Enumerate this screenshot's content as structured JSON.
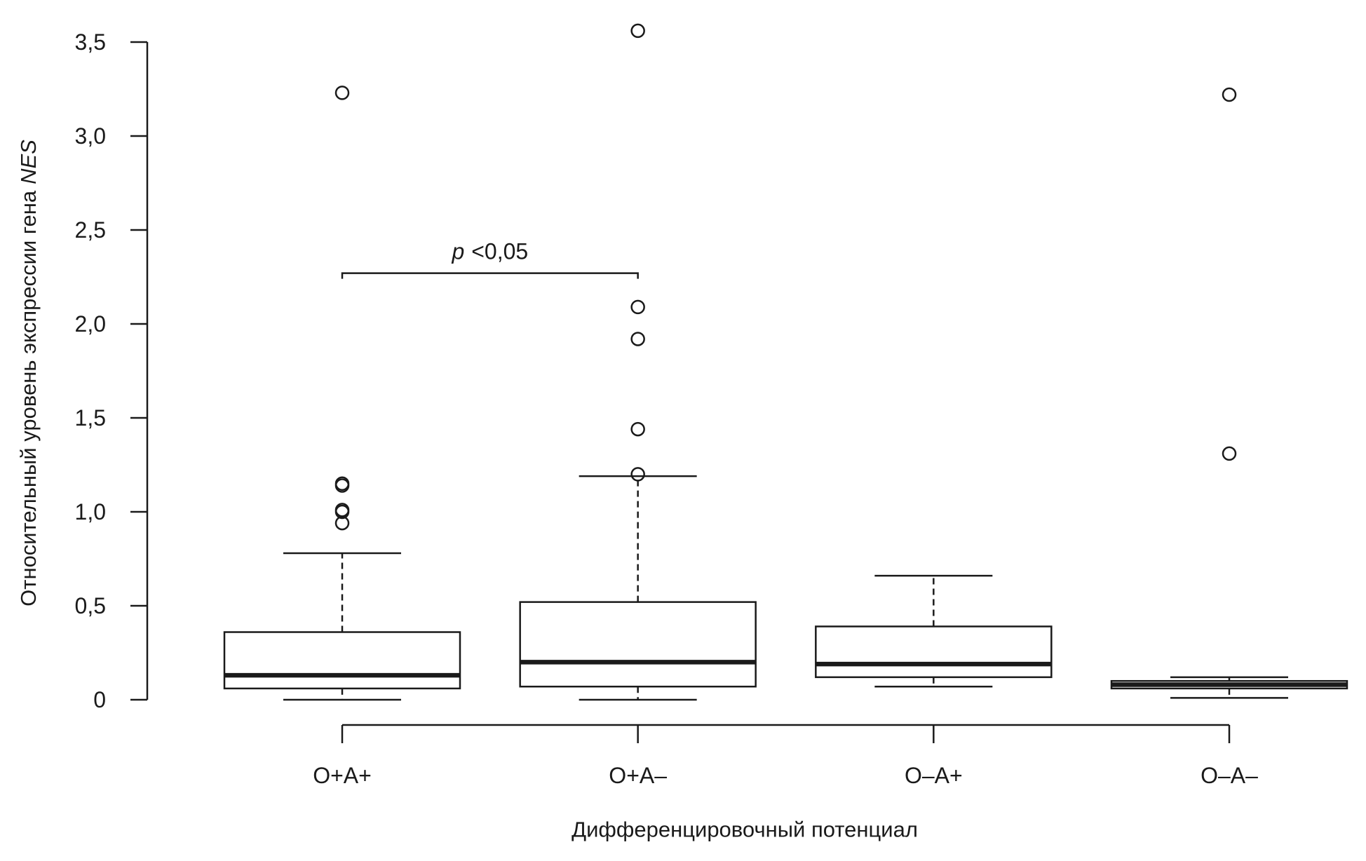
{
  "chart_data": {
    "type": "box",
    "xlabel": "Дифференцировочный потенциал",
    "ylabel": "Относительный уровень экспрессии гена",
    "ylabel_gene": "NES",
    "categories": [
      "O+A+",
      "O+A–",
      "O–A+",
      "O–A–"
    ],
    "ylim": [
      0,
      3.5
    ],
    "yticks": [
      0,
      0.5,
      1.0,
      1.5,
      2.0,
      2.5,
      3.0,
      3.5
    ],
    "ytick_labels": [
      "0",
      "0,5",
      "1,0",
      "1,5",
      "2,0",
      "2,5",
      "3,0",
      "3,5"
    ],
    "grid": false,
    "boxes": [
      {
        "whisker_low": 0.0,
        "q1": 0.06,
        "median": 0.13,
        "q3": 0.36,
        "whisker_high": 0.78,
        "outliers": [
          0.94,
          1.0,
          1.01,
          1.14,
          1.15,
          3.23
        ]
      },
      {
        "whisker_low": 0.0,
        "q1": 0.07,
        "median": 0.2,
        "q3": 0.52,
        "whisker_high": 1.19,
        "outliers": [
          1.2,
          1.44,
          1.92,
          2.09,
          3.56
        ]
      },
      {
        "whisker_low": 0.07,
        "q1": 0.12,
        "median": 0.19,
        "q3": 0.39,
        "whisker_high": 0.66,
        "outliers": []
      },
      {
        "whisker_low": 0.01,
        "q1": 0.06,
        "median": 0.08,
        "q3": 0.1,
        "whisker_high": 0.12,
        "outliers": [
          1.31,
          3.22
        ]
      }
    ],
    "annotation": {
      "symbol": "p",
      "text": "<0,05",
      "from": "O+A+",
      "to": "O+A–",
      "y": 2.27
    },
    "colors": {
      "line": "#1a1a1a",
      "background": "#ffffff"
    }
  }
}
